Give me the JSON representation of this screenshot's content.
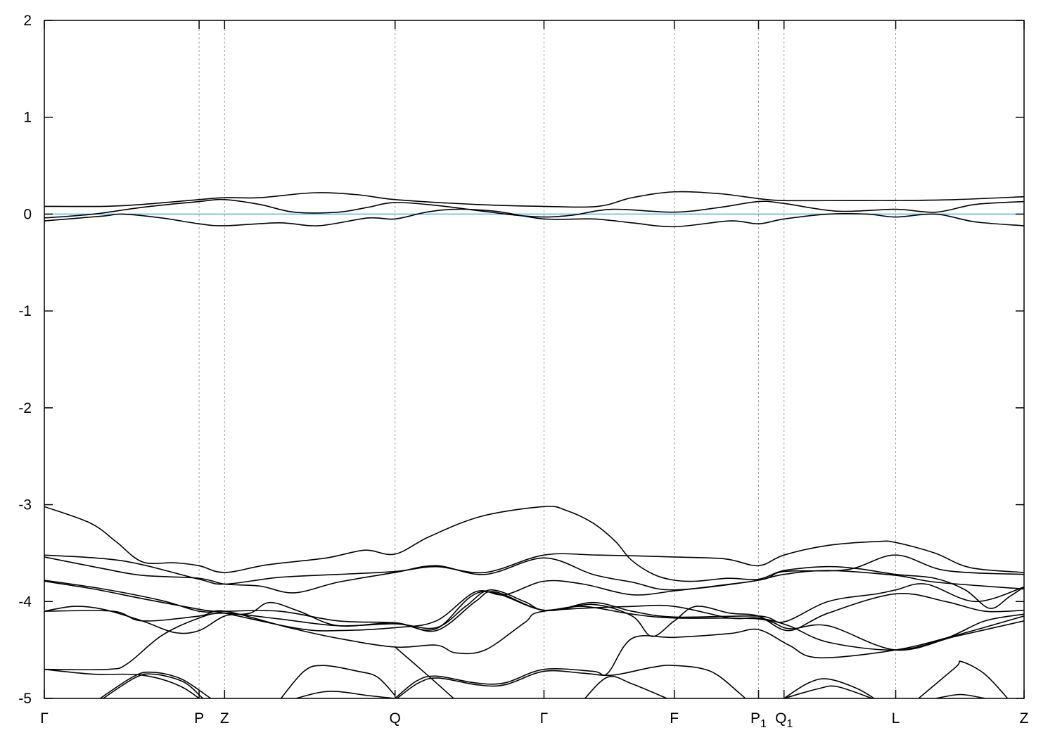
{
  "chart_data": {
    "type": "line",
    "title": "",
    "xlabel": "",
    "ylabel": "",
    "ylim": [
      -5,
      2
    ],
    "xlim": [
      0,
      1
    ],
    "grid": "dashed vertical lines at high-symmetry points",
    "yticks": [
      2,
      1,
      0,
      -1,
      -2,
      -3,
      -4,
      -5
    ],
    "xticks": [
      {
        "label": "Γ",
        "sub": "",
        "k": 0
      },
      {
        "label": "P",
        "sub": "",
        "k": 0.158
      },
      {
        "label": "Z",
        "sub": "",
        "k": 0.184
      },
      {
        "label": "Q",
        "sub": "",
        "k": 0.358
      },
      {
        "label": "Γ",
        "sub": "",
        "k": 0.51
      },
      {
        "label": "F",
        "sub": "",
        "k": 0.643
      },
      {
        "label": "P",
        "sub": "1",
        "k": 0.729
      },
      {
        "label": "Q",
        "sub": "1",
        "k": 0.755
      },
      {
        "label": "L",
        "sub": "",
        "k": 0.869
      },
      {
        "label": "Z",
        "sub": "",
        "k": 1.0
      }
    ],
    "fermi_level": 0,
    "colors": {
      "bands": "#000000",
      "fermi_line": "#56b4e9",
      "grid": "#a0a0a0"
    },
    "bands": [
      [
        [
          0,
          0.08
        ],
        [
          0.06,
          0.08
        ],
        [
          0.1,
          0.1
        ],
        [
          0.158,
          0.15
        ],
        [
          0.184,
          0.17
        ],
        [
          0.22,
          0.17
        ],
        [
          0.275,
          0.22
        ],
        [
          0.32,
          0.2
        ],
        [
          0.358,
          0.15
        ],
        [
          0.44,
          0.1
        ],
        [
          0.51,
          0.08
        ],
        [
          0.565,
          0.08
        ],
        [
          0.6,
          0.17
        ],
        [
          0.643,
          0.23
        ],
        [
          0.69,
          0.21
        ],
        [
          0.729,
          0.16
        ],
        [
          0.755,
          0.14
        ],
        [
          0.82,
          0.14
        ],
        [
          0.869,
          0.14
        ],
        [
          0.93,
          0.15
        ],
        [
          1,
          0.18
        ]
      ],
      [
        [
          0,
          -0.04
        ],
        [
          0.05,
          0.0
        ],
        [
          0.1,
          0.07
        ],
        [
          0.158,
          0.13
        ],
        [
          0.184,
          0.15
        ],
        [
          0.22,
          0.1
        ],
        [
          0.255,
          0.02
        ],
        [
          0.3,
          0.02
        ],
        [
          0.33,
          0.07
        ],
        [
          0.358,
          0.12
        ],
        [
          0.4,
          0.09
        ],
        [
          0.44,
          0.04
        ],
        [
          0.48,
          -0.01
        ],
        [
          0.51,
          -0.03
        ],
        [
          0.54,
          -0.01
        ],
        [
          0.58,
          0.05
        ],
        [
          0.643,
          0.02
        ],
        [
          0.69,
          0.07
        ],
        [
          0.729,
          0.13
        ],
        [
          0.755,
          0.11
        ],
        [
          0.81,
          0.03
        ],
        [
          0.869,
          0.05
        ],
        [
          0.91,
          0.02
        ],
        [
          0.95,
          0.1
        ],
        [
          1,
          0.13
        ]
      ],
      [
        [
          0,
          -0.07
        ],
        [
          0.06,
          -0.02
        ],
        [
          0.08,
          0.0
        ],
        [
          0.12,
          -0.04
        ],
        [
          0.158,
          -0.1
        ],
        [
          0.184,
          -0.12
        ],
        [
          0.24,
          -0.09
        ],
        [
          0.28,
          -0.12
        ],
        [
          0.33,
          -0.04
        ],
        [
          0.358,
          -0.05
        ],
        [
          0.39,
          0.02
        ],
        [
          0.42,
          0.05
        ],
        [
          0.46,
          0.03
        ],
        [
          0.51,
          -0.05
        ],
        [
          0.56,
          -0.05
        ],
        [
          0.6,
          -0.09
        ],
        [
          0.643,
          -0.13
        ],
        [
          0.7,
          -0.07
        ],
        [
          0.729,
          -0.1
        ],
        [
          0.755,
          -0.05
        ],
        [
          0.8,
          0.0
        ],
        [
          0.84,
          0.0
        ],
        [
          0.869,
          -0.03
        ],
        [
          0.91,
          0.0
        ],
        [
          0.95,
          -0.08
        ],
        [
          1,
          -0.12
        ]
      ],
      [
        [
          0,
          -3.02
        ],
        [
          0.047,
          -3.19
        ],
        [
          0.073,
          -3.38
        ],
        [
          0.1,
          -3.59
        ],
        [
          0.133,
          -3.6
        ],
        [
          0.158,
          -3.63
        ],
        [
          0.184,
          -3.7
        ],
        [
          0.228,
          -3.62
        ],
        [
          0.288,
          -3.55
        ],
        [
          0.327,
          -3.47
        ],
        [
          0.358,
          -3.51
        ],
        [
          0.393,
          -3.33
        ],
        [
          0.446,
          -3.12
        ],
        [
          0.51,
          -3.02
        ],
        [
          0.533,
          -3.06
        ],
        [
          0.56,
          -3.19
        ],
        [
          0.583,
          -3.38
        ],
        [
          0.599,
          -3.57
        ],
        [
          0.622,
          -3.72
        ],
        [
          0.643,
          -3.78
        ],
        [
          0.665,
          -3.79
        ],
        [
          0.698,
          -3.76
        ],
        [
          0.729,
          -3.77
        ],
        [
          0.755,
          -3.68
        ],
        [
          0.797,
          -3.64
        ],
        [
          0.83,
          -3.66
        ],
        [
          0.869,
          -3.72
        ],
        [
          0.909,
          -3.76
        ],
        [
          0.94,
          -3.88
        ],
        [
          0.965,
          -4.07
        ],
        [
          0.985,
          -3.95
        ],
        [
          1,
          -3.85
        ]
      ],
      [
        [
          0,
          -3.52
        ],
        [
          0.08,
          -3.58
        ],
        [
          0.158,
          -3.77
        ],
        [
          0.184,
          -3.82
        ],
        [
          0.24,
          -3.75
        ],
        [
          0.3,
          -3.72
        ],
        [
          0.358,
          -3.69
        ],
        [
          0.4,
          -3.64
        ],
        [
          0.45,
          -3.7
        ],
        [
          0.51,
          -3.52
        ],
        [
          0.565,
          -3.52
        ],
        [
          0.643,
          -3.54
        ],
        [
          0.695,
          -3.56
        ],
        [
          0.729,
          -3.63
        ],
        [
          0.755,
          -3.52
        ],
        [
          0.8,
          -3.42
        ],
        [
          0.85,
          -3.38
        ],
        [
          0.869,
          -3.39
        ],
        [
          0.909,
          -3.5
        ],
        [
          0.945,
          -3.65
        ],
        [
          1,
          -3.7
        ]
      ],
      [
        [
          0,
          -3.54
        ],
        [
          0.06,
          -3.66
        ],
        [
          0.1,
          -3.73
        ],
        [
          0.158,
          -3.76
        ],
        [
          0.184,
          -3.82
        ],
        [
          0.22,
          -3.84
        ],
        [
          0.255,
          -3.91
        ],
        [
          0.3,
          -3.8
        ],
        [
          0.358,
          -3.7
        ],
        [
          0.4,
          -3.63
        ],
        [
          0.45,
          -3.72
        ],
        [
          0.51,
          -3.55
        ],
        [
          0.56,
          -3.72
        ],
        [
          0.6,
          -3.8
        ],
        [
          0.643,
          -3.88
        ],
        [
          0.729,
          -3.78
        ],
        [
          0.755,
          -3.69
        ],
        [
          0.82,
          -3.67
        ],
        [
          0.869,
          -3.52
        ],
        [
          0.92,
          -3.68
        ],
        [
          1,
          -3.72
        ]
      ],
      [
        [
          0,
          -3.78
        ],
        [
          0.06,
          -3.87
        ],
        [
          0.12,
          -3.99
        ],
        [
          0.158,
          -4.1
        ],
        [
          0.184,
          -4.1
        ],
        [
          0.24,
          -4.1
        ],
        [
          0.3,
          -4.2
        ],
        [
          0.358,
          -4.22
        ],
        [
          0.4,
          -4.28
        ],
        [
          0.446,
          -3.9
        ],
        [
          0.51,
          -4.09
        ],
        [
          0.56,
          -4.01
        ],
        [
          0.6,
          -4.1
        ],
        [
          0.643,
          -4.16
        ],
        [
          0.729,
          -4.15
        ],
        [
          0.755,
          -4.21
        ],
        [
          0.8,
          -4.0
        ],
        [
          0.85,
          -3.92
        ],
        [
          0.869,
          -3.88
        ],
        [
          0.9,
          -3.82
        ],
        [
          0.95,
          -4.0
        ],
        [
          1,
          -3.85
        ]
      ],
      [
        [
          0,
          -3.79
        ],
        [
          0.05,
          -3.87
        ],
        [
          0.1,
          -3.97
        ],
        [
          0.158,
          -4.08
        ],
        [
          0.184,
          -4.12
        ],
        [
          0.26,
          -4.28
        ],
        [
          0.3,
          -4.3
        ],
        [
          0.358,
          -4.27
        ],
        [
          0.4,
          -4.2
        ],
        [
          0.44,
          -3.9
        ],
        [
          0.47,
          -3.93
        ],
        [
          0.51,
          -3.79
        ],
        [
          0.55,
          -3.82
        ],
        [
          0.6,
          -3.93
        ],
        [
          0.643,
          -3.89
        ],
        [
          0.7,
          -3.82
        ],
        [
          0.729,
          -3.78
        ],
        [
          0.755,
          -3.72
        ],
        [
          0.8,
          -3.68
        ],
        [
          0.869,
          -3.73
        ],
        [
          0.91,
          -3.8
        ],
        [
          1,
          -3.87
        ]
      ],
      [
        [
          0,
          -4.1
        ],
        [
          0.03,
          -4.05
        ],
        [
          0.06,
          -4.08
        ],
        [
          0.1,
          -4.2
        ],
        [
          0.133,
          -4.32
        ],
        [
          0.158,
          -4.3
        ],
        [
          0.184,
          -4.15
        ],
        [
          0.21,
          -4.12
        ],
        [
          0.23,
          -4.01
        ],
        [
          0.26,
          -4.1
        ],
        [
          0.3,
          -4.25
        ],
        [
          0.358,
          -4.22
        ],
        [
          0.4,
          -4.3
        ],
        [
          0.44,
          -4.0
        ],
        [
          0.46,
          -3.9
        ],
        [
          0.51,
          -4.09
        ],
        [
          0.56,
          -4.03
        ],
        [
          0.6,
          -4.15
        ],
        [
          0.62,
          -4.36
        ],
        [
          0.643,
          -4.2
        ],
        [
          0.665,
          -4.05
        ],
        [
          0.7,
          -4.12
        ],
        [
          0.729,
          -4.15
        ],
        [
          0.76,
          -4.3
        ],
        [
          0.8,
          -4.12
        ],
        [
          0.869,
          -3.92
        ],
        [
          0.92,
          -4.0
        ],
        [
          0.96,
          -4.1
        ],
        [
          1,
          -4.09
        ]
      ],
      [
        [
          0,
          -4.1
        ],
        [
          0.07,
          -4.1
        ],
        [
          0.1,
          -4.2
        ],
        [
          0.158,
          -4.15
        ],
        [
          0.184,
          -4.1
        ],
        [
          0.25,
          -4.27
        ],
        [
          0.3,
          -4.38
        ],
        [
          0.358,
          -4.47
        ],
        [
          0.4,
          -4.45
        ],
        [
          0.42,
          -4.53
        ],
        [
          0.45,
          -4.5
        ],
        [
          0.49,
          -4.22
        ],
        [
          0.51,
          -4.1
        ],
        [
          0.6,
          -4.05
        ],
        [
          0.643,
          -4.05
        ],
        [
          0.7,
          -4.17
        ],
        [
          0.729,
          -4.17
        ],
        [
          0.76,
          -4.25
        ],
        [
          0.8,
          -4.42
        ],
        [
          0.869,
          -4.5
        ],
        [
          0.92,
          -4.38
        ],
        [
          0.96,
          -4.2
        ],
        [
          1,
          -4.13
        ]
      ],
      [
        [
          0,
          -4.7
        ],
        [
          0.065,
          -4.7
        ],
        [
          0.085,
          -4.64
        ],
        [
          0.12,
          -4.35
        ],
        [
          0.158,
          -4.17
        ],
        [
          0.184,
          -4.12
        ],
        [
          0.24,
          -4.18
        ],
        [
          0.3,
          -4.25
        ],
        [
          0.358,
          -4.23
        ],
        [
          0.4,
          -4.27
        ],
        [
          0.43,
          -4.05
        ],
        [
          0.455,
          -3.88
        ],
        [
          0.49,
          -4.0
        ],
        [
          0.51,
          -4.09
        ],
        [
          0.55,
          -4.05
        ],
        [
          0.6,
          -4.13
        ],
        [
          0.643,
          -4.17
        ],
        [
          0.729,
          -4.18
        ],
        [
          0.76,
          -4.28
        ],
        [
          0.8,
          -4.25
        ],
        [
          0.869,
          -4.5
        ],
        [
          0.93,
          -4.36
        ],
        [
          1,
          -4.2
        ]
      ],
      [
        [
          0,
          -4.7
        ],
        [
          0.05,
          -4.75
        ],
        [
          0.1,
          -4.76
        ],
        [
          0.14,
          -4.88
        ],
        [
          0.17,
          -5.1
        ]
      ],
      [
        [
          0.05,
          -5.05
        ],
        [
          0.09,
          -4.78
        ],
        [
          0.11,
          -4.73
        ],
        [
          0.14,
          -4.8
        ],
        [
          0.17,
          -5.0
        ],
        [
          0.18,
          -5.05
        ]
      ],
      [
        [
          0.053,
          -5.05
        ],
        [
          0.092,
          -4.79
        ],
        [
          0.112,
          -4.75
        ],
        [
          0.142,
          -4.83
        ],
        [
          0.162,
          -5.0
        ],
        [
          0.17,
          -5.05
        ]
      ],
      [
        [
          0.24,
          -5.02
        ],
        [
          0.265,
          -4.72
        ],
        [
          0.285,
          -4.66
        ],
        [
          0.32,
          -4.72
        ],
        [
          0.34,
          -4.78
        ],
        [
          0.358,
          -4.97
        ]
      ],
      [
        [
          0.25,
          -5.02
        ],
        [
          0.28,
          -4.94
        ],
        [
          0.3,
          -4.93
        ],
        [
          0.33,
          -4.97
        ],
        [
          0.358,
          -5.0
        ]
      ],
      [
        [
          0.358,
          -5.0
        ],
        [
          0.38,
          -4.82
        ],
        [
          0.4,
          -4.77
        ],
        [
          0.44,
          -4.84
        ],
        [
          0.47,
          -4.84
        ],
        [
          0.51,
          -4.7
        ],
        [
          0.56,
          -4.72
        ],
        [
          0.575,
          -4.74
        ],
        [
          0.6,
          -4.38
        ],
        [
          0.643,
          -4.37
        ],
        [
          0.7,
          -4.33
        ],
        [
          0.729,
          -4.29
        ],
        [
          0.76,
          -4.45
        ],
        [
          0.79,
          -4.58
        ],
        [
          0.869,
          -4.5
        ],
        [
          0.93,
          -4.35
        ],
        [
          1,
          -4.15
        ]
      ],
      [
        [
          0.36,
          -5.0
        ],
        [
          0.382,
          -4.84
        ],
        [
          0.402,
          -4.79
        ],
        [
          0.442,
          -4.86
        ],
        [
          0.47,
          -4.86
        ],
        [
          0.51,
          -4.72
        ],
        [
          0.55,
          -4.74
        ],
        [
          0.58,
          -4.76
        ],
        [
          0.62,
          -4.68
        ],
        [
          0.643,
          -4.66
        ],
        [
          0.68,
          -4.72
        ],
        [
          0.71,
          -4.95
        ],
        [
          0.72,
          -5.05
        ]
      ],
      [
        [
          0.358,
          -4.47
        ],
        [
          0.39,
          -4.75
        ],
        [
          0.42,
          -5.02
        ]
      ],
      [
        [
          0.55,
          -5.02
        ],
        [
          0.575,
          -4.78
        ],
        [
          0.6,
          -4.85
        ],
        [
          0.64,
          -5.02
        ]
      ],
      [
        [
          0.755,
          -5.0
        ],
        [
          0.78,
          -4.84
        ],
        [
          0.8,
          -4.8
        ],
        [
          0.83,
          -4.9
        ],
        [
          0.85,
          -5.02
        ]
      ],
      [
        [
          0.755,
          -5.0
        ],
        [
          0.79,
          -4.9
        ],
        [
          0.81,
          -4.88
        ],
        [
          0.85,
          -5.02
        ]
      ],
      [
        [
          0.89,
          -5.02
        ],
        [
          0.93,
          -4.68
        ],
        [
          0.936,
          -4.62
        ],
        [
          0.96,
          -4.75
        ],
        [
          0.985,
          -5.02
        ]
      ],
      [
        [
          0.91,
          -5.0
        ],
        [
          0.935,
          -4.96
        ],
        [
          0.96,
          -5.0
        ]
      ]
    ]
  }
}
